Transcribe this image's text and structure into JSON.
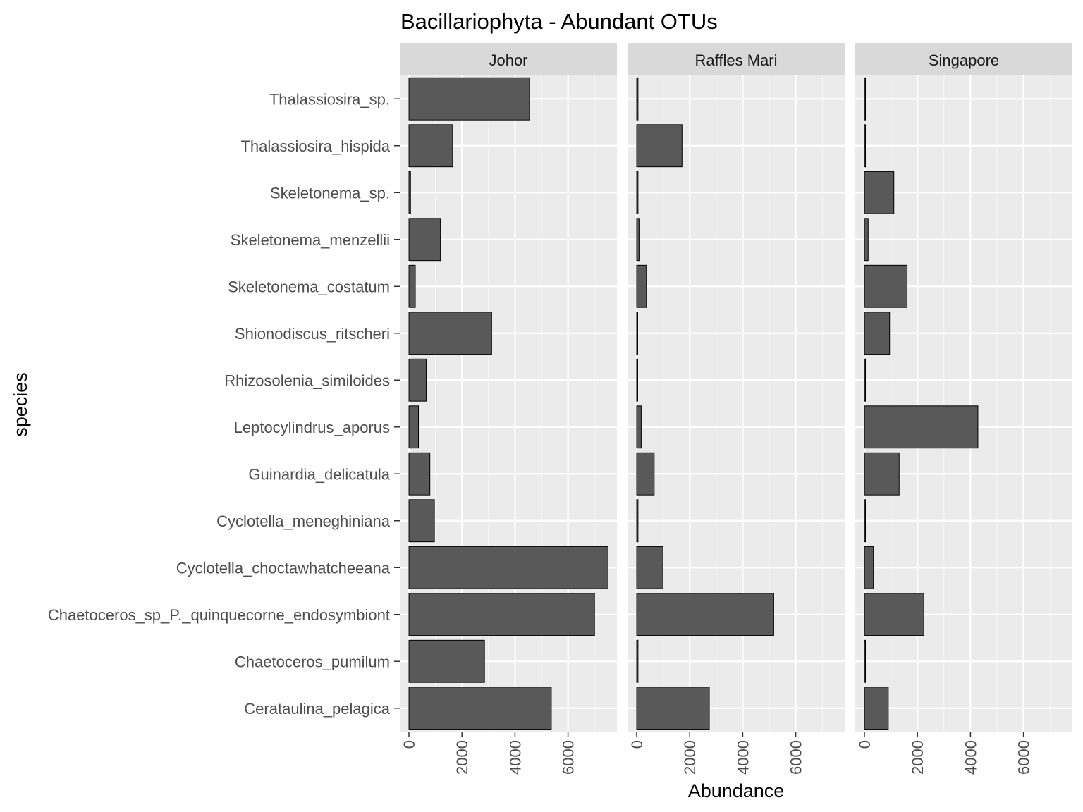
{
  "chart_data": {
    "type": "bar",
    "orientation": "horizontal",
    "title": "Bacillariophyta - Abundant OTUs",
    "xlabel": "Abundance",
    "ylabel": "species",
    "xlim": [
      0,
      7500
    ],
    "xticks": [
      0,
      2000,
      4000,
      6000
    ],
    "xtick_labels": [
      "0",
      "2000",
      "4000",
      "6000"
    ],
    "grid": true,
    "categories": [
      "Thalassiosira_sp.",
      "Thalassiosira_hispida",
      "Skeletonema_sp.",
      "Skeletonema_menzellii",
      "Skeletonema_costatum",
      "Shionodiscus_ritscheri",
      "Rhizosolenia_similoides",
      "Leptocylindrus_aporus",
      "Guinardia_delicatula",
      "Cyclotella_meneghiniana",
      "Cyclotella_choctawhatcheeana",
      "Chaetoceros_sp_P._quinquecorne_endosymbiont",
      "Chaetoceros_pumilum",
      "Cerataulina_pelagica"
    ],
    "panels": [
      {
        "name": "Johor",
        "values": [
          4550,
          1650,
          60,
          1190,
          240,
          3120,
          650,
          360,
          790,
          960,
          7510,
          7000,
          2850,
          5370
        ]
      },
      {
        "name": "Raffles Mari",
        "values": [
          50,
          1710,
          50,
          90,
          370,
          40,
          40,
          170,
          660,
          50,
          990,
          5170,
          50,
          2740
        ]
      },
      {
        "name": "Singapore",
        "values": [
          40,
          40,
          1110,
          140,
          1610,
          950,
          40,
          4280,
          1310,
          40,
          340,
          2240,
          40,
          900
        ]
      }
    ],
    "colors": {
      "bar_fill": "#595959",
      "bar_stroke": "#000000",
      "panel_bg": "#ebebeb",
      "strip_bg": "#d9d9d9",
      "grid_major": "#ffffff",
      "grid_minor": "#f5f5f5"
    }
  }
}
